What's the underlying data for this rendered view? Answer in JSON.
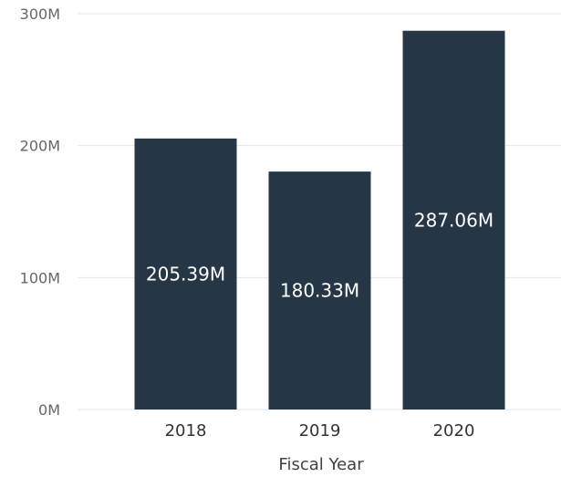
{
  "chart_data": {
    "type": "bar",
    "categories": [
      "2018",
      "2019",
      "2020"
    ],
    "values": [
      205.39,
      180.33,
      287.06
    ],
    "data_labels": [
      "205.39M",
      "180.33M",
      "287.06M"
    ],
    "title": "",
    "xlabel": "Fiscal Year",
    "ylabel": "",
    "ylim": [
      0,
      300
    ],
    "y_ticks": [
      0,
      100,
      200,
      300
    ],
    "y_tick_labels": [
      "0M",
      "100M",
      "200M",
      "300M"
    ],
    "grid": true,
    "legend": "none",
    "bar_color": "#253746"
  }
}
